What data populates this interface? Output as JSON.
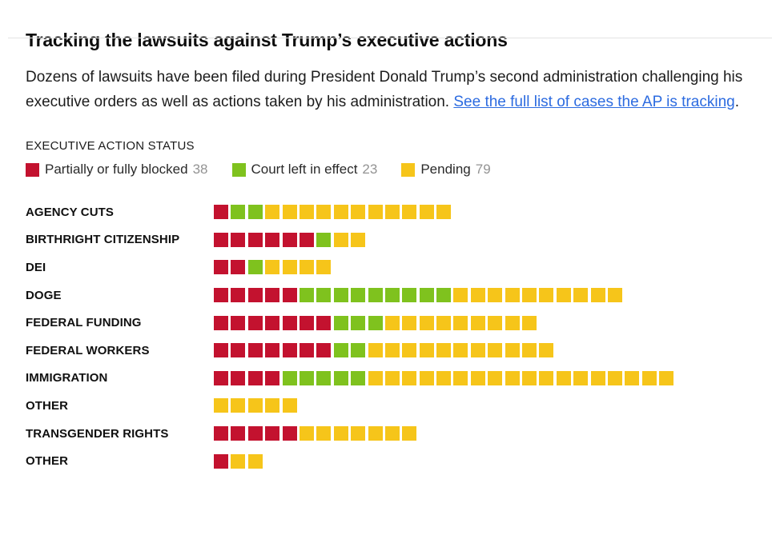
{
  "page": {
    "title": "Tracking the lawsuits against Trump’s executive actions",
    "description_before_link": "Dozens of lawsuits have been filed during President Donald Trump’s second administration challenging his executive orders as well as actions taken by his administration. ",
    "link_text": "See the full list of cases the AP is tracking",
    "description_after_link": "."
  },
  "legend": {
    "heading": "EXECUTIVE ACTION STATUS",
    "items": [
      {
        "label": "Partially or fully blocked",
        "count": 38,
        "color": "#c3122f"
      },
      {
        "label": "Court left in effect",
        "count": 23,
        "color": "#7fc21e"
      },
      {
        "label": "Pending",
        "count": 79,
        "color": "#f6c51a"
      }
    ]
  },
  "chart_data": {
    "type": "bar",
    "subtype": "stacked-unit-square-bars",
    "title": "EXECUTIVE ACTION STATUS",
    "legend_position": "top",
    "unit": "1 square = 1 lawsuit",
    "categories": [
      "AGENCY CUTS",
      "BIRTHRIGHT CITIZENSHIP",
      "DEI",
      "DOGE",
      "FEDERAL FUNDING",
      "FEDERAL WORKERS",
      "IMMIGRATION",
      "OTHER",
      "TRANSGENDER RIGHTS",
      "OTHER"
    ],
    "series": [
      {
        "name": "Partially or fully blocked",
        "key": "blocked",
        "color": "#c3122f",
        "values": [
          1,
          6,
          2,
          5,
          7,
          7,
          4,
          0,
          5,
          1
        ],
        "total": 38
      },
      {
        "name": "Court left in effect",
        "key": "court-left-in-effect",
        "color": "#7fc21e",
        "values": [
          2,
          1,
          1,
          9,
          3,
          2,
          5,
          0,
          0,
          0
        ],
        "total": 23
      },
      {
        "name": "Pending",
        "key": "pending",
        "color": "#f6c51a",
        "values": [
          11,
          2,
          4,
          10,
          9,
          11,
          18,
          5,
          7,
          2
        ],
        "total": 79
      }
    ]
  }
}
